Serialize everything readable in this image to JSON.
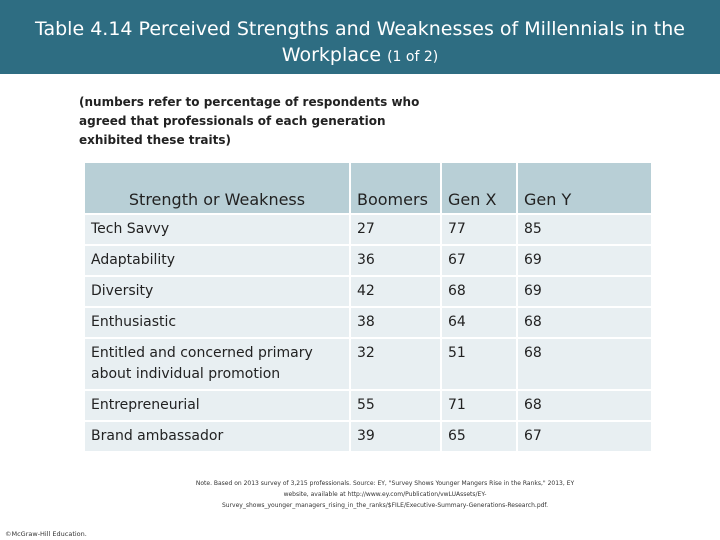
{
  "title": {
    "line1": "Table 4.14 Perceived Strengths and Weaknesses of Millennials in the",
    "line2": "Workplace",
    "line2_small": "(1 of 2)"
  },
  "subtitle": "(numbers refer to percentage of respondents  who agreed that professionals of each generation exhibited these traits)",
  "table": {
    "headers": [
      "Strength or Weakness",
      "Boomers",
      "Gen X",
      "Gen Y"
    ],
    "rows": [
      [
        "Tech Savvy",
        "27",
        "77",
        "85"
      ],
      [
        "Adaptability",
        "36",
        "67",
        "69"
      ],
      [
        "Diversity",
        "42",
        "68",
        "69"
      ],
      [
        "Enthusiastic",
        "38",
        "64",
        "68"
      ],
      [
        "Entitled and concerned primary about individual promotion",
        "32",
        "51",
        "68"
      ],
      [
        "Entrepreneurial",
        "55",
        "71",
        "68"
      ],
      [
        "Brand ambassador",
        "39",
        "65",
        "67"
      ]
    ]
  },
  "note": "Note. Based on 2013 survey of 3,215 professionals. Source: EY, \"Survey Shows Younger Mangers Rise in the Ranks,\" 2013, EY website, available at http://www.ey.com/Publication/vwLUAssets/EY-Survey_shows_younger_managers_rising_in_the_ranks/$FILE/Executive-Summary-Generations-Research.pdf.",
  "copyright": "©McGraw-Hill Education."
}
